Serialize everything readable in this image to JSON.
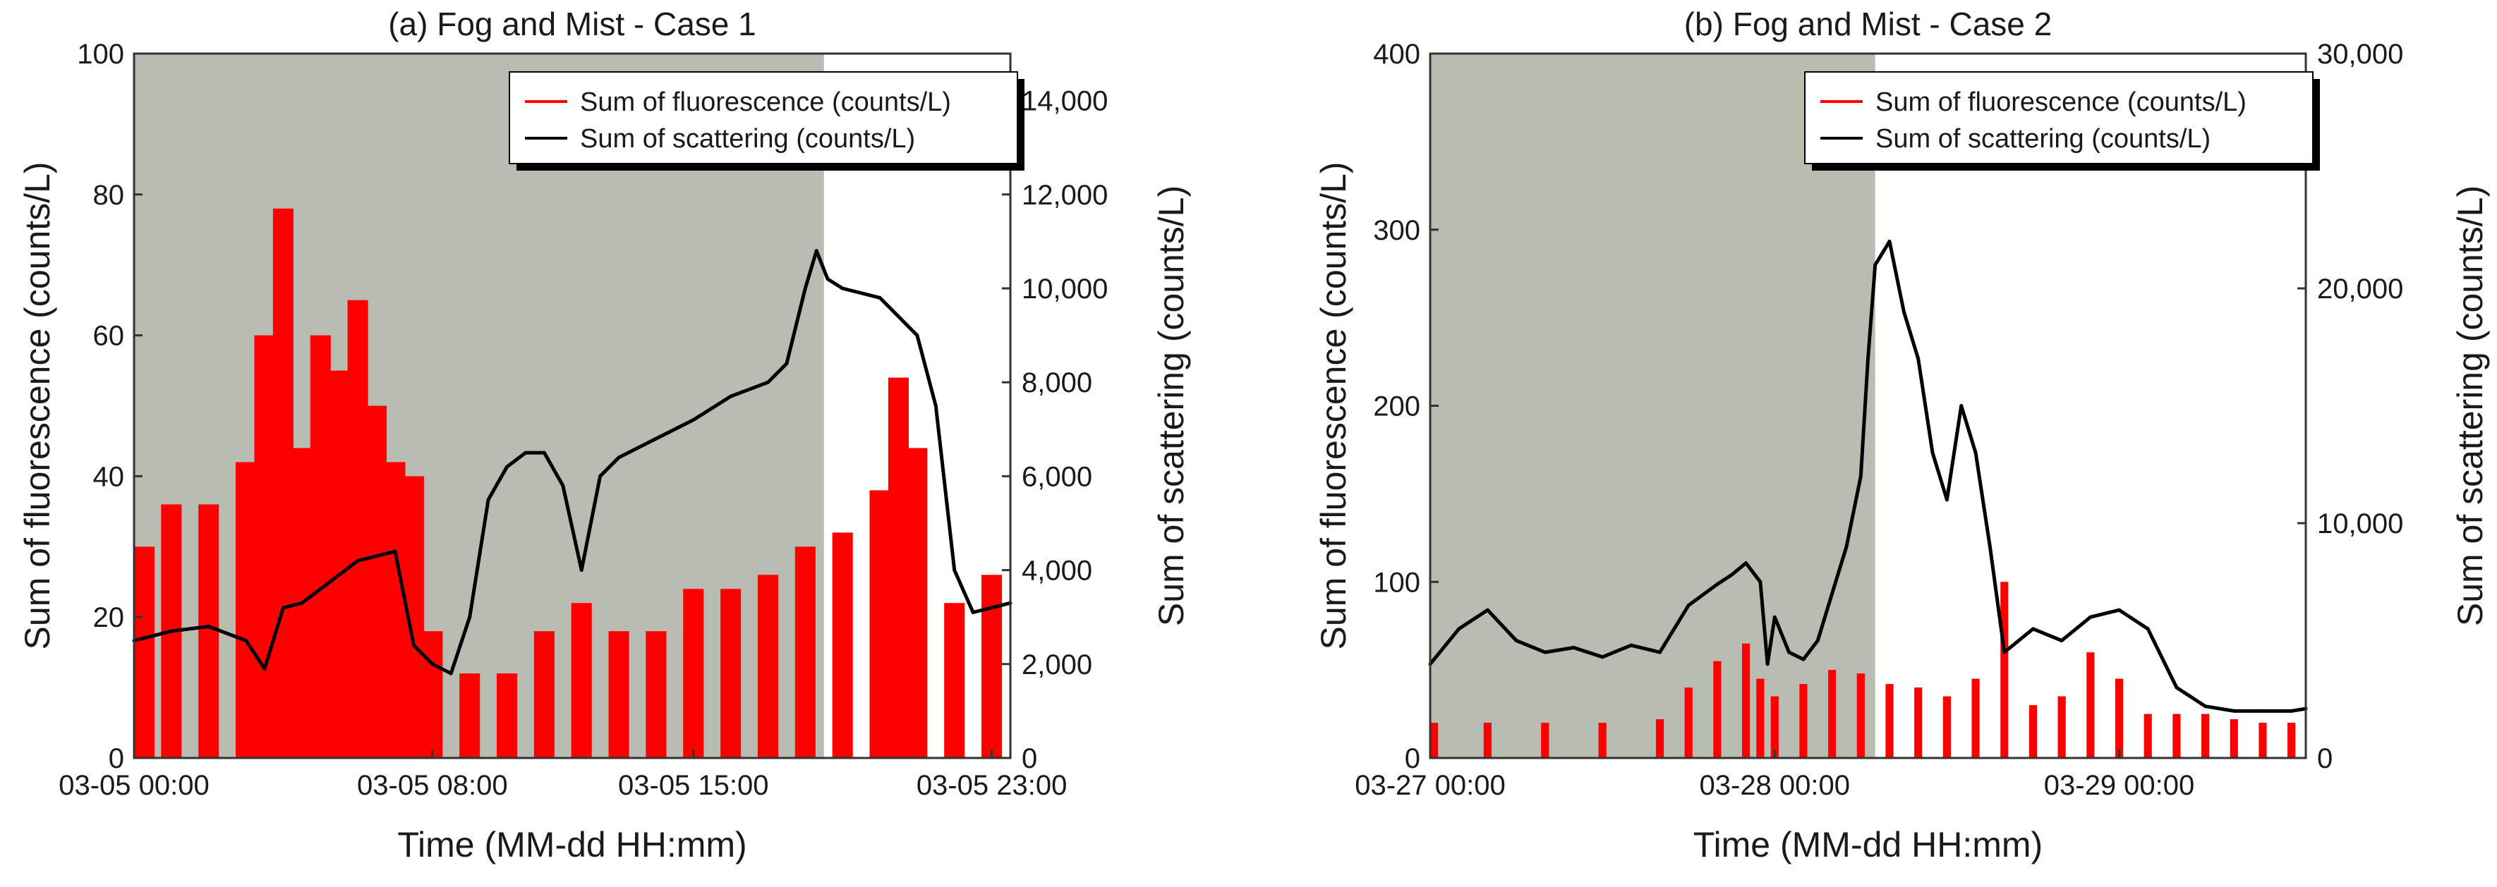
{
  "colors": {
    "fluorescence": "#ff0000",
    "scattering": "#000000",
    "fog_shading": "#b8bcb1",
    "background": "#ffffff"
  },
  "chart_data": [
    {
      "type": "bar+line",
      "title": "(a) Fog and Mist - Case 1",
      "xlabel": "Time (MM-dd HH:mm)",
      "ylabel": "Sum of fluorescence (counts/L)",
      "y2label": "Sum of scattering (counts/L)",
      "x_range_hours": [
        0,
        23.5
      ],
      "x_ticks": [
        "03-05 00:00",
        "03-05 08:00",
        "03-05 15:00",
        "03-05 23:00"
      ],
      "x_tick_hours": [
        0,
        8,
        15,
        23
      ],
      "ylim": [
        0,
        100
      ],
      "yticks": [
        "0",
        "20",
        "40",
        "60",
        "80",
        "100"
      ],
      "y2lim": [
        0,
        15000
      ],
      "y2ticks": [
        "0",
        "2,000",
        "4,000",
        "6,000",
        "8,000",
        "10,000",
        "12,000",
        "14,000"
      ],
      "shaded_region_hours": [
        0,
        18.5
      ],
      "legend": [
        "Sum of fluorescence (counts/L)",
        "Sum of scattering (counts/L)"
      ],
      "legend_position": "top-right",
      "series": [
        {
          "name": "Sum of fluorescence (counts/L)",
          "kind": "bar",
          "x": [
            0,
            1,
            2,
            3,
            3.5,
            4,
            4.5,
            5,
            5.5,
            6,
            6.5,
            7,
            7.5,
            8,
            9,
            10,
            11,
            12,
            13,
            14,
            15,
            16,
            17,
            18,
            19,
            20,
            20.5,
            21,
            22,
            23
          ],
          "y": [
            30,
            36,
            36,
            42,
            60,
            78,
            44,
            60,
            55,
            65,
            50,
            42,
            40,
            18,
            12,
            12,
            18,
            22,
            18,
            18,
            24,
            24,
            26,
            30,
            32,
            38,
            54,
            44,
            22,
            26
          ]
        },
        {
          "name": "Sum of scattering (counts/L)",
          "kind": "line",
          "x": [
            0,
            1,
            2,
            3,
            3.5,
            4,
            4.5,
            5,
            6,
            7,
            7.5,
            8,
            8.5,
            9,
            9.5,
            10,
            10.5,
            11,
            11.5,
            12,
            12.5,
            13,
            14,
            15,
            16,
            17,
            17.5,
            18,
            18.3,
            18.6,
            19,
            20,
            21,
            21.5,
            22,
            22.5,
            23,
            23.5
          ],
          "y": [
            2500,
            2700,
            2800,
            2500,
            1900,
            3200,
            3300,
            3600,
            4200,
            4400,
            2400,
            2000,
            1800,
            3000,
            5500,
            6200,
            6500,
            6500,
            5800,
            4000,
            6000,
            6400,
            6800,
            7200,
            7700,
            8000,
            8400,
            10000,
            10800,
            10200,
            10000,
            9800,
            9000,
            7500,
            4000,
            3100,
            3200,
            3300
          ]
        }
      ]
    },
    {
      "type": "bar+line",
      "title": "(b) Fog and Mist - Case 2",
      "xlabel": "Time (MM-dd HH:mm)",
      "ylabel": "Sum of fluorescence (counts/L)",
      "y2label": "Sum of scattering (counts/L)",
      "x_range_hours": [
        0,
        61
      ],
      "x_ticks": [
        "03-27 00:00",
        "03-28 00:00",
        "03-29 00:00"
      ],
      "x_tick_hours": [
        0,
        24,
        48
      ],
      "ylim": [
        0,
        400
      ],
      "yticks": [
        "0",
        "100",
        "200",
        "300",
        "400"
      ],
      "y2lim": [
        0,
        30000
      ],
      "y2ticks": [
        "0",
        "10,000",
        "20,000",
        "30,000"
      ],
      "shaded_region_hours": [
        0,
        31
      ],
      "legend": [
        "Sum of fluorescence (counts/L)",
        "Sum of scattering (counts/L)"
      ],
      "legend_position": "top-right",
      "series": [
        {
          "name": "Sum of fluorescence (counts/L)",
          "kind": "bar",
          "x": [
            0,
            4,
            8,
            12,
            16,
            18,
            20,
            22,
            23,
            24,
            26,
            28,
            30,
            32,
            34,
            36,
            38,
            40,
            42,
            44,
            46,
            48,
            50,
            52,
            54,
            56,
            58,
            60
          ],
          "y": [
            20,
            20,
            20,
            20,
            22,
            40,
            55,
            65,
            45,
            35,
            42,
            50,
            48,
            42,
            40,
            35,
            45,
            100,
            30,
            35,
            60,
            45,
            25,
            25,
            25,
            22,
            20,
            20
          ]
        },
        {
          "name": "Sum of scattering (counts/L)",
          "kind": "line",
          "x": [
            0,
            2,
            4,
            6,
            8,
            10,
            12,
            14,
            16,
            18,
            20,
            21,
            22,
            23,
            23.5,
            24,
            25,
            26,
            27,
            28,
            29,
            30,
            30.5,
            31,
            32,
            33,
            34,
            35,
            36,
            37,
            38,
            39,
            40,
            42,
            44,
            46,
            48,
            50,
            52,
            54,
            56,
            58,
            60,
            61
          ],
          "y": [
            4000,
            5500,
            6300,
            5000,
            4500,
            4700,
            4300,
            4800,
            4500,
            6500,
            7400,
            7800,
            8300,
            7500,
            4000,
            6000,
            4500,
            4200,
            5000,
            7000,
            9000,
            12000,
            17000,
            21000,
            22000,
            19000,
            17000,
            13000,
            11000,
            15000,
            13000,
            9000,
            4500,
            5500,
            5000,
            6000,
            6300,
            5500,
            3000,
            2200,
            2000,
            2000,
            2000,
            2100
          ]
        }
      ]
    }
  ]
}
